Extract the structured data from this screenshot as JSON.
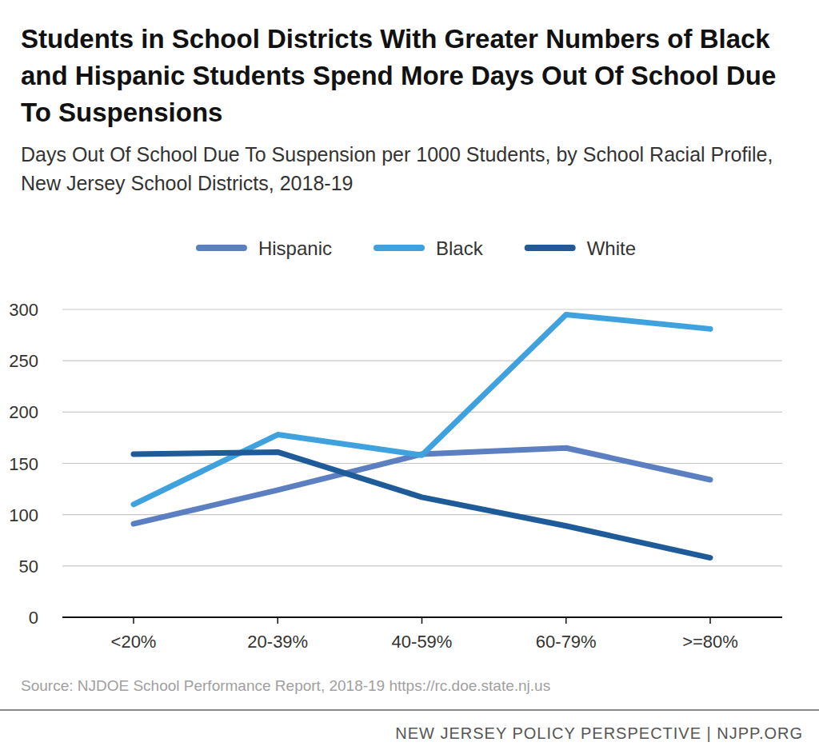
{
  "chart_data": {
    "type": "line",
    "title": "Students in School Districts With Greater Numbers of Black and Hispanic Students Spend More Days Out Of School Due To Suspensions",
    "subtitle": "Days Out Of School Due To Suspension per 1000 Students, by School Racial Profile, New Jersey School Districts, 2018-19",
    "source": "Source: NJDOE School Performance Report, 2018-19 https://rc.doe.state.nj.us",
    "footer": "NEW JERSEY POLICY PERSPECTIVE | NJPP.ORG",
    "categories": [
      "<20%",
      "20-39%",
      "40-59%",
      "60-79%",
      ">=80%"
    ],
    "series": [
      {
        "name": "Hispanic",
        "color": "#5b7fc0",
        "values": [
          91,
          124,
          159,
          165,
          134
        ]
      },
      {
        "name": "Black",
        "color": "#3fa2de",
        "values": [
          110,
          178,
          158,
          295,
          281
        ]
      },
      {
        "name": "White",
        "color": "#1f5b98",
        "values": [
          159,
          161,
          117,
          89,
          58
        ]
      }
    ],
    "ylim": [
      0,
      300
    ],
    "yticks": [
      0,
      50,
      100,
      150,
      200,
      250,
      300
    ],
    "grid": true,
    "legend": "top"
  }
}
